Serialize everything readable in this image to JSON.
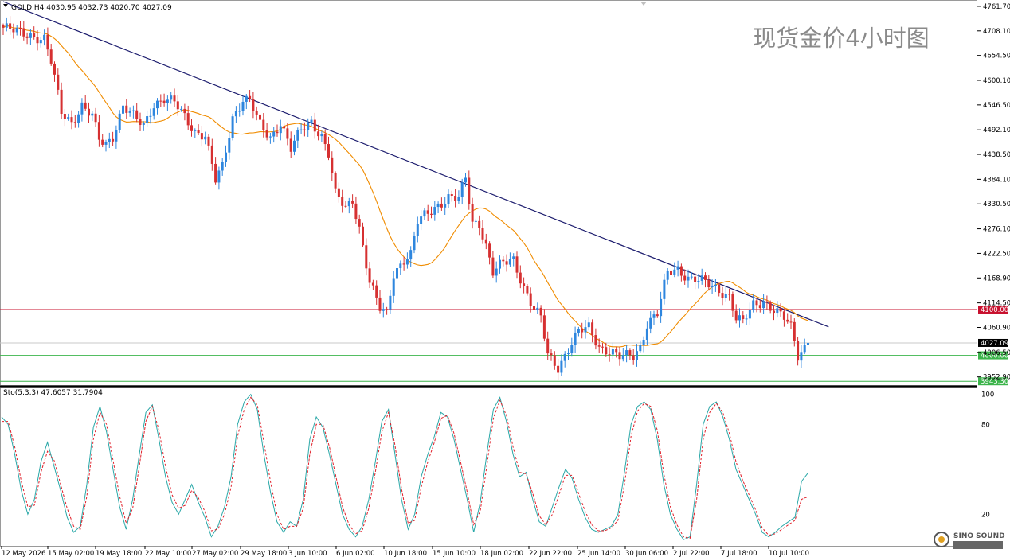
{
  "chart_data": [
    {
      "type": "candlestick",
      "symbol_info": "GOLD,H4  4030.95 4032.73 4020.70 4027.09",
      "title": "现货金价4小时图",
      "y_ticks": [
        4761.7,
        4708.1,
        4654.5,
        4600.1,
        4546.5,
        4492.1,
        4438.5,
        4384.1,
        4330.5,
        4276.1,
        4222.5,
        4168.9,
        4114.5,
        4060.9,
        4006.5,
        3952.9
      ],
      "y_tick_labels": [
        "4761.70",
        "4708.10",
        "4654.50",
        "4600.10",
        "4546.50",
        "4492.10",
        "4438.50",
        "4384.10",
        "4330.50",
        "4276.10",
        "4222.50",
        "4168.90",
        "4114.50",
        "4060.90",
        "4006.50",
        "3952.90"
      ],
      "ylim": [
        3935,
        4772
      ],
      "x_tick_labels": [
        "12 May 2026",
        "15 May 02:00",
        "19 May 18:00",
        "22 May 10:00",
        "27 May 02:00",
        "29 May 18:00",
        "3 Jun 10:00",
        "6 Jun 02:00",
        "10 Jun 18:00",
        "15 Jun 10:00",
        "18 Jun 02:00",
        "22 Jun 22:00",
        "25 Jun 14:00",
        "30 Jun 06:00",
        "2 Jul 22:00",
        "7 Jul 18:00",
        "10 Jul 10:00"
      ],
      "current_price": 4027.09,
      "current_price_label": "4027.09",
      "levels": [
        {
          "value": 4100.0,
          "label": "4100.00",
          "color": "#c8102e"
        },
        {
          "value": 4000.0,
          "label": "4000.00",
          "color": "#3cb44b"
        },
        {
          "value": 3943.3,
          "label": "3943.30",
          "color": "#3cb44b"
        }
      ],
      "trendline": {
        "start": {
          "bar": 0,
          "price": 4772
        },
        "end": {
          "bar": 241,
          "price": 4062
        },
        "color": "#1c1c6e"
      },
      "ma_color": "#f08c00",
      "up_color": "#2e86de",
      "down_color": "#d63031",
      "anchors": [
        [
          0,
          4715
        ],
        [
          4,
          4705
        ],
        [
          8,
          4700
        ],
        [
          12,
          4690
        ],
        [
          14,
          4640
        ],
        [
          17,
          4530
        ],
        [
          20,
          4510
        ],
        [
          23,
          4545
        ],
        [
          26,
          4520
        ],
        [
          28,
          4470
        ],
        [
          30,
          4460
        ],
        [
          32,
          4480
        ],
        [
          35,
          4545
        ],
        [
          38,
          4520
        ],
        [
          41,
          4500
        ],
        [
          44,
          4550
        ],
        [
          47,
          4560
        ],
        [
          50,
          4550
        ],
        [
          53,
          4520
        ],
        [
          56,
          4490
        ],
        [
          59,
          4480
        ],
        [
          62,
          4380
        ],
        [
          64,
          4410
        ],
        [
          67,
          4520
        ],
        [
          70,
          4560
        ],
        [
          72,
          4555
        ],
        [
          75,
          4500
        ],
        [
          78,
          4475
        ],
        [
          81,
          4510
        ],
        [
          84,
          4450
        ],
        [
          87,
          4490
        ],
        [
          90,
          4510
        ],
        [
          93,
          4480
        ],
        [
          95,
          4440
        ],
        [
          97,
          4350
        ],
        [
          100,
          4320
        ],
        [
          102,
          4340
        ],
        [
          104,
          4280
        ],
        [
          107,
          4160
        ],
        [
          110,
          4100
        ],
        [
          112,
          4090
        ],
        [
          114,
          4180
        ],
        [
          117,
          4210
        ],
        [
          119,
          4220
        ],
        [
          121,
          4290
        ],
        [
          124,
          4310
        ],
        [
          127,
          4330
        ],
        [
          130,
          4345
        ],
        [
          133,
          4340
        ],
        [
          135,
          4385
        ],
        [
          137,
          4290
        ],
        [
          139,
          4290
        ],
        [
          141,
          4240
        ],
        [
          143,
          4180
        ],
        [
          146,
          4200
        ],
        [
          149,
          4210
        ],
        [
          152,
          4150
        ],
        [
          155,
          4100
        ],
        [
          157,
          4080
        ],
        [
          159,
          4000
        ],
        [
          162,
          3975
        ],
        [
          165,
          4015
        ],
        [
          168,
          4050
        ],
        [
          171,
          4060
        ],
        [
          174,
          4020
        ],
        [
          177,
          4010
        ],
        [
          180,
          3995
        ],
        [
          184,
          4000
        ],
        [
          186,
          4020
        ],
        [
          188,
          4070
        ],
        [
          191,
          4090
        ],
        [
          194,
          4180
        ],
        [
          197,
          4190
        ],
        [
          200,
          4170
        ],
        [
          204,
          4160
        ],
        [
          207,
          4150
        ],
        [
          210,
          4140
        ],
        [
          212,
          4130
        ],
        [
          214,
          4080
        ],
        [
          216,
          4070
        ],
        [
          219,
          4110
        ],
        [
          222,
          4120
        ],
        [
          225,
          4100
        ],
        [
          228,
          4080
        ],
        [
          230,
          4060
        ],
        [
          232,
          4000
        ],
        [
          234,
          4020
        ],
        [
          235,
          4027.09
        ]
      ]
    },
    {
      "type": "line",
      "indicator_info": "Sto(5,3,3) 47.6057 31.7904",
      "y_tick_labels": [
        "100",
        "80",
        "20"
      ],
      "y_ticks": [
        100,
        80,
        20
      ],
      "ylim": [
        0,
        103
      ],
      "series": [
        {
          "color": "#2aa8a8",
          "values": [
            85,
            80,
            60,
            36,
            20,
            30,
            55,
            68,
            52,
            36,
            18,
            8,
            12,
            40,
            78,
            92,
            75,
            50,
            25,
            10,
            30,
            60,
            88,
            93,
            70,
            45,
            28,
            20,
            30,
            40,
            28,
            18,
            5,
            12,
            25,
            45,
            80,
            95,
            100,
            90,
            60,
            35,
            15,
            8,
            15,
            12,
            30,
            70,
            85,
            78,
            60,
            40,
            20,
            10,
            5,
            12,
            30,
            55,
            82,
            90,
            60,
            30,
            10,
            20,
            45,
            60,
            72,
            88,
            85,
            70,
            50,
            30,
            8,
            28,
            60,
            90,
            98,
            82,
            60,
            45,
            48,
            30,
            15,
            12,
            25,
            38,
            50,
            44,
            30,
            18,
            10,
            8,
            10,
            12,
            20,
            48,
            80,
            92,
            95,
            90,
            70,
            40,
            20,
            10,
            3,
            5,
            40,
            80,
            92,
            95,
            85,
            70,
            50,
            40,
            30,
            20,
            8,
            5,
            8,
            12,
            15,
            18,
            42,
            47.6
          ]
        },
        {
          "color": "#e0202a",
          "values": [
            82,
            82,
            65,
            42,
            25,
            26,
            48,
            62,
            56,
            40,
            24,
            12,
            10,
            32,
            70,
            88,
            80,
            56,
            32,
            14,
            24,
            52,
            82,
            92,
            76,
            52,
            33,
            24,
            26,
            36,
            31,
            22,
            9,
            10,
            20,
            38,
            72,
            90,
            98,
            93,
            68,
            42,
            20,
            10,
            12,
            12,
            24,
            60,
            80,
            80,
            65,
            45,
            25,
            13,
            7,
            9,
            24,
            48,
            75,
            88,
            66,
            37,
            14,
            16,
            38,
            55,
            68,
            84,
            86,
            74,
            55,
            35,
            13,
            22,
            52,
            84,
            96,
            86,
            65,
            48,
            47,
            34,
            19,
            13,
            20,
            33,
            46,
            46,
            34,
            22,
            13,
            9,
            9,
            11,
            16,
            40,
            72,
            89,
            94,
            92,
            76,
            47,
            25,
            13,
            5,
            4,
            30,
            70,
            88,
            94,
            88,
            74,
            55,
            43,
            33,
            23,
            11,
            6,
            7,
            10,
            13,
            16,
            30,
            31.8
          ]
        }
      ]
    }
  ],
  "watermark": "SINO SOUND"
}
